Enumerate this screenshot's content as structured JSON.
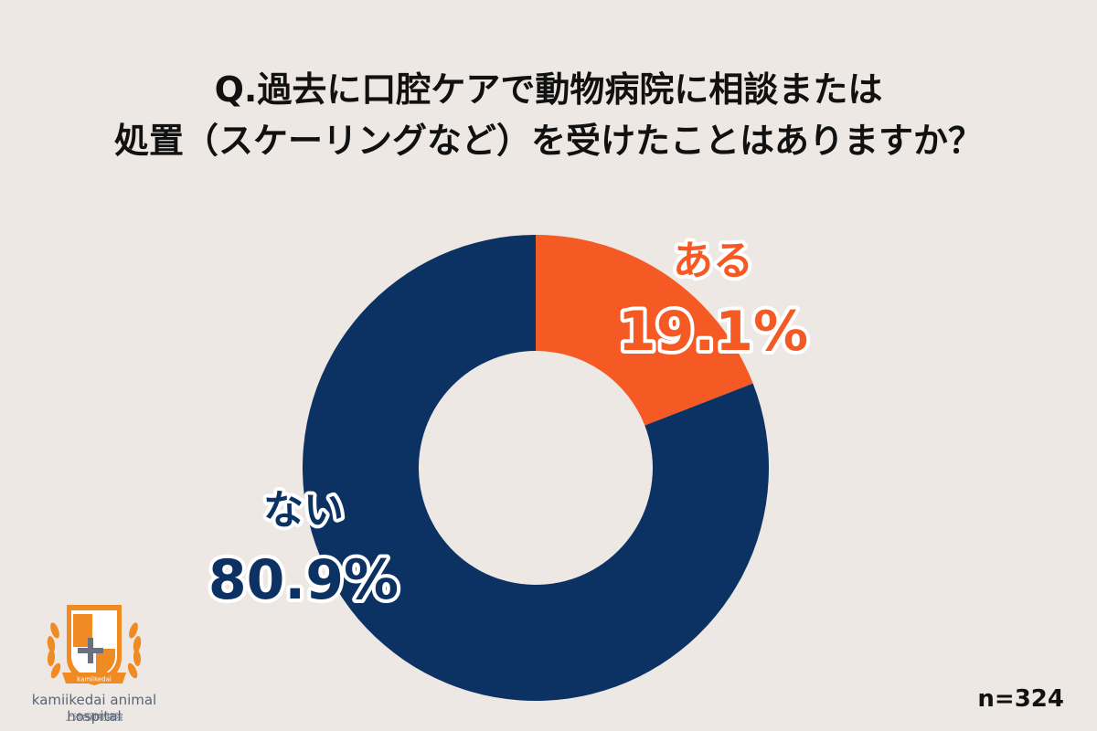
{
  "title": {
    "line1": "Q.過去に口腔ケアで動物病院に相談または",
    "line2": "処置（スケーリングなど）を受けたことはありますか？"
  },
  "sample_size": "n=324",
  "logo": {
    "name": "kamiikedai animal hospital",
    "subname": "上池台動物病院",
    "ribbon": "kamiikedai"
  },
  "colors": {
    "yes": "#f55a24",
    "no": "#0b3263",
    "background": "#ede8e4",
    "logo": "#f08a22"
  },
  "chart_data": {
    "type": "pie",
    "donut": true,
    "slices": [
      {
        "label": "ある",
        "value": 19.1,
        "value_text": "19.1%",
        "color": "#f55a24"
      },
      {
        "label": "ない",
        "value": 80.9,
        "value_text": "80.9%",
        "color": "#0b3263"
      }
    ]
  }
}
